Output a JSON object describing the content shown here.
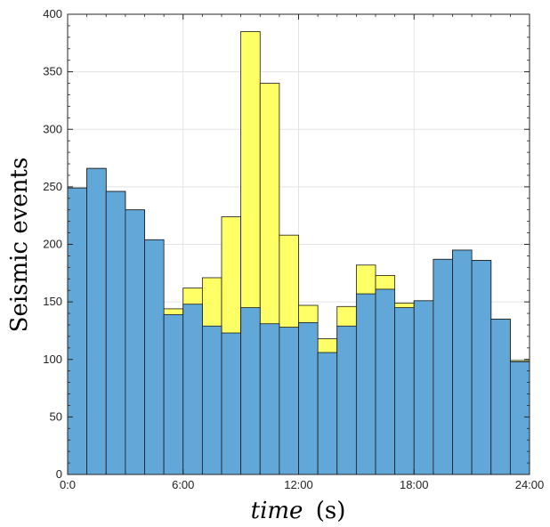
{
  "chart_data": {
    "type": "bar",
    "stacked_overlay": true,
    "xlabel": {
      "variable": "time",
      "unit": "(s)"
    },
    "ylabel": "Seismic events",
    "xlim": [
      0,
      24
    ],
    "ylim": [
      0,
      400
    ],
    "x_ticks": [
      {
        "value": 0,
        "label": "0:0"
      },
      {
        "value": 6,
        "label": "6:00"
      },
      {
        "value": 12,
        "label": "12:00"
      },
      {
        "value": 18,
        "label": "18:00"
      },
      {
        "value": 24,
        "label": "24:00"
      }
    ],
    "y_ticks": [
      0,
      50,
      100,
      150,
      200,
      250,
      300,
      350,
      400
    ],
    "grid": true,
    "bin_width_hours": 1,
    "series": [
      {
        "color": "#ffff66",
        "values": [
          249,
          266,
          246,
          230,
          204,
          144,
          162,
          171,
          224,
          385,
          340,
          208,
          147,
          118,
          146,
          182,
          173,
          149,
          151,
          187,
          195,
          186,
          135,
          99
        ]
      },
      {
        "color": "#61a8d8",
        "values": [
          249,
          266,
          246,
          230,
          204,
          139,
          148,
          129,
          123,
          145,
          131,
          128,
          132,
          106,
          129,
          157,
          161,
          145,
          151,
          187,
          195,
          186,
          135,
          98
        ]
      }
    ]
  }
}
